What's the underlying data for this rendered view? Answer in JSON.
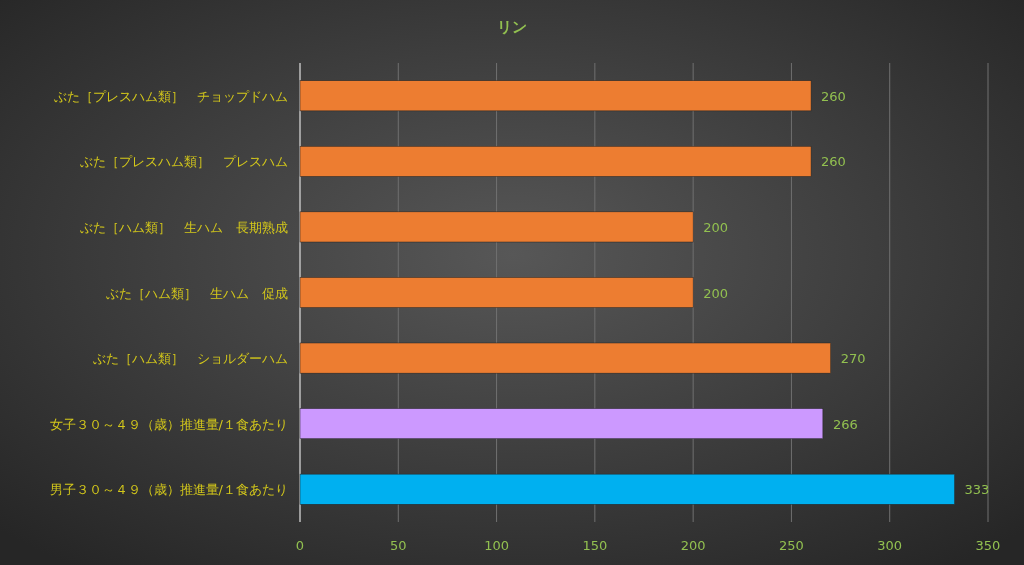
{
  "chart_data": {
    "type": "bar",
    "orientation": "horizontal",
    "title": "リン",
    "categories": [
      "ぶた［プレスハム類］　チョップドハム",
      "ぶた［プレスハム類］　プレスハム",
      "ぶた［ハム類］　生ハム　長期熟成",
      "ぶた［ハム類］　生ハム　促成",
      "ぶた［ハム類］　ショルダーハム",
      "女子３０～４９（歳）推進量/１食あたり",
      "男子３０～４９（歳）推進量/１食あたり"
    ],
    "values": [
      260,
      260,
      200,
      200,
      270,
      266,
      333
    ],
    "colors": [
      "#ed7d31",
      "#ed7d31",
      "#ed7d31",
      "#ed7d31",
      "#ed7d31",
      "#cc99ff",
      "#00b0f0"
    ],
    "xlim": [
      0,
      350
    ],
    "xticks": [
      0,
      50,
      100,
      150,
      200,
      250,
      300,
      350
    ],
    "grid": "x",
    "data_labels": true
  }
}
